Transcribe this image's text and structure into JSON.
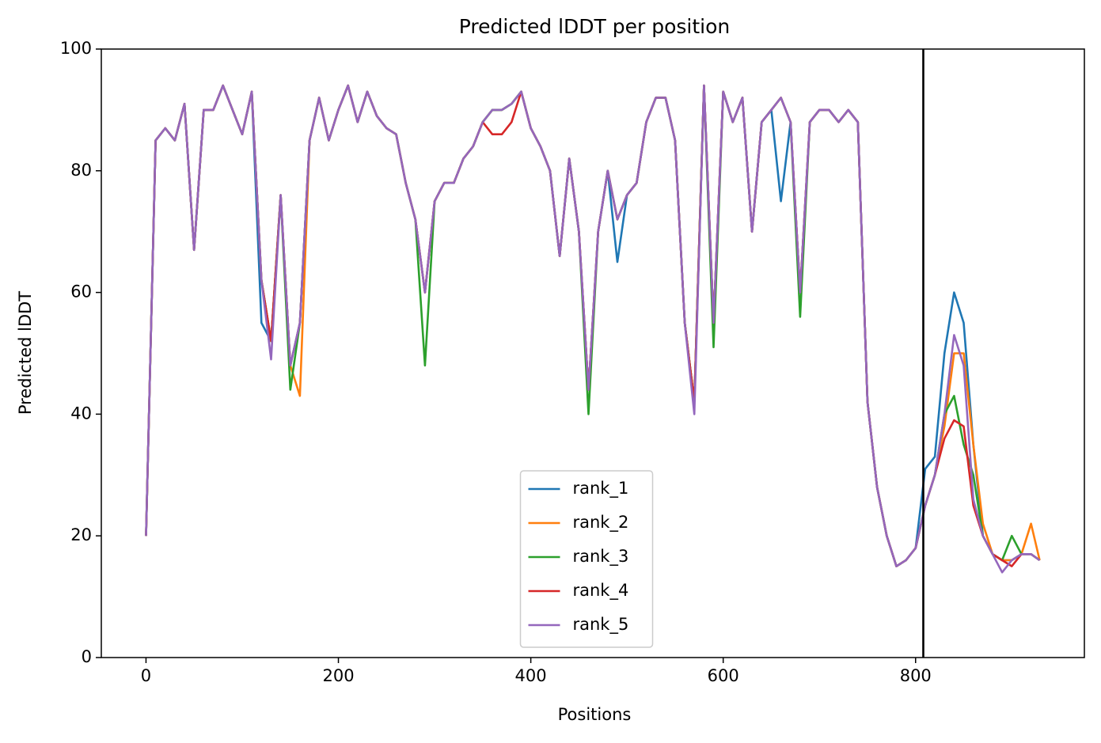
{
  "chart_data": {
    "type": "line",
    "title": "Predicted lDDT per position",
    "xlabel": "Positions",
    "ylabel": "Predicted lDDT",
    "xlim": [
      -46.45,
      975.45
    ],
    "ylim": [
      0,
      100
    ],
    "xticks": [
      0,
      200,
      400,
      600,
      800
    ],
    "yticks": [
      0,
      20,
      40,
      60,
      80,
      100
    ],
    "vline": 808,
    "legend": "lower center",
    "x": [
      0,
      10,
      20,
      30,
      40,
      50,
      60,
      70,
      80,
      90,
      100,
      110,
      120,
      130,
      140,
      150,
      160,
      170,
      180,
      190,
      200,
      210,
      220,
      230,
      240,
      250,
      260,
      270,
      280,
      290,
      300,
      310,
      320,
      330,
      340,
      350,
      360,
      370,
      380,
      390,
      400,
      410,
      420,
      430,
      440,
      450,
      460,
      470,
      480,
      490,
      500,
      510,
      520,
      530,
      540,
      550,
      560,
      570,
      580,
      590,
      600,
      610,
      620,
      630,
      640,
      650,
      660,
      670,
      680,
      690,
      700,
      710,
      720,
      730,
      740,
      750,
      760,
      770,
      780,
      790,
      800,
      810,
      820,
      830,
      840,
      850,
      860,
      870,
      880,
      890,
      900,
      910,
      920,
      929
    ],
    "series": [
      {
        "name": "rank_1",
        "color": "#1f77b4",
        "values": [
          20,
          85,
          87,
          85,
          91,
          67,
          90,
          90,
          94,
          90,
          86,
          93,
          55,
          52,
          76,
          48,
          55,
          85,
          92,
          85,
          90,
          94,
          88,
          93,
          89,
          87,
          86,
          78,
          72,
          60,
          75,
          78,
          78,
          82,
          84,
          88,
          90,
          90,
          91,
          93,
          87,
          84,
          80,
          66,
          82,
          70,
          44,
          70,
          80,
          65,
          76,
          78,
          88,
          92,
          92,
          85,
          55,
          42,
          94,
          55,
          93,
          88,
          92,
          70,
          88,
          90,
          75,
          88,
          60,
          88,
          90,
          90,
          88,
          90,
          88,
          42,
          28,
          20,
          15,
          16,
          18,
          31,
          33,
          50,
          60,
          55,
          35,
          20,
          17,
          16,
          16,
          17,
          17,
          16
        ]
      },
      {
        "name": "rank_2",
        "color": "#ff7f0e",
        "values": [
          20,
          85,
          87,
          85,
          91,
          67,
          90,
          90,
          94,
          90,
          86,
          93,
          62,
          52,
          76,
          48,
          43,
          85,
          92,
          85,
          90,
          94,
          88,
          93,
          89,
          87,
          86,
          78,
          72,
          60,
          75,
          78,
          78,
          82,
          84,
          88,
          90,
          90,
          91,
          93,
          87,
          84,
          80,
          66,
          82,
          70,
          44,
          70,
          80,
          72,
          76,
          78,
          88,
          92,
          92,
          85,
          55,
          42,
          94,
          55,
          93,
          88,
          92,
          70,
          88,
          90,
          92,
          88,
          60,
          88,
          90,
          90,
          88,
          90,
          88,
          42,
          28,
          20,
          15,
          16,
          18,
          25,
          30,
          38,
          50,
          50,
          35,
          22,
          17,
          16,
          16,
          17,
          22,
          16
        ]
      },
      {
        "name": "rank_3",
        "color": "#2ca02c",
        "values": [
          20,
          85,
          87,
          85,
          91,
          67,
          90,
          90,
          94,
          90,
          86,
          93,
          62,
          52,
          76,
          44,
          55,
          85,
          92,
          85,
          90,
          94,
          88,
          93,
          89,
          87,
          86,
          78,
          72,
          48,
          75,
          78,
          78,
          82,
          84,
          88,
          90,
          90,
          91,
          93,
          87,
          84,
          80,
          66,
          82,
          70,
          40,
          70,
          80,
          72,
          76,
          78,
          88,
          92,
          92,
          85,
          55,
          42,
          94,
          51,
          93,
          88,
          92,
          70,
          88,
          90,
          92,
          88,
          56,
          88,
          90,
          90,
          88,
          90,
          88,
          42,
          28,
          20,
          15,
          16,
          18,
          25,
          30,
          40,
          43,
          35,
          30,
          20,
          17,
          16,
          20,
          17,
          17,
          16
        ]
      },
      {
        "name": "rank_4",
        "color": "#d62728",
        "values": [
          20,
          85,
          87,
          85,
          91,
          67,
          90,
          90,
          94,
          90,
          86,
          93,
          62,
          52,
          76,
          48,
          55,
          85,
          92,
          85,
          90,
          94,
          88,
          93,
          89,
          87,
          86,
          78,
          72,
          60,
          75,
          78,
          78,
          82,
          84,
          88,
          86,
          86,
          88,
          93,
          87,
          84,
          80,
          66,
          82,
          70,
          44,
          70,
          80,
          72,
          76,
          78,
          88,
          92,
          92,
          85,
          55,
          42,
          94,
          55,
          93,
          88,
          92,
          70,
          88,
          90,
          92,
          88,
          60,
          88,
          90,
          90,
          88,
          90,
          88,
          42,
          28,
          20,
          15,
          16,
          18,
          25,
          30,
          36,
          39,
          38,
          25,
          20,
          17,
          16,
          15,
          17,
          17,
          16
        ]
      },
      {
        "name": "rank_5",
        "color": "#9467bd",
        "values": [
          20,
          85,
          87,
          85,
          91,
          67,
          90,
          90,
          94,
          90,
          86,
          93,
          62,
          49,
          76,
          48,
          55,
          85,
          92,
          85,
          90,
          94,
          88,
          93,
          89,
          87,
          86,
          78,
          72,
          60,
          75,
          78,
          78,
          82,
          84,
          88,
          90,
          90,
          91,
          93,
          87,
          84,
          80,
          66,
          82,
          70,
          44,
          70,
          80,
          72,
          76,
          78,
          88,
          92,
          92,
          85,
          55,
          40,
          94,
          55,
          93,
          88,
          92,
          70,
          88,
          90,
          92,
          88,
          60,
          88,
          90,
          90,
          88,
          90,
          88,
          42,
          28,
          20,
          15,
          16,
          18,
          25,
          30,
          40,
          53,
          48,
          26,
          20,
          17,
          14,
          16,
          17,
          17,
          16
        ]
      }
    ]
  }
}
